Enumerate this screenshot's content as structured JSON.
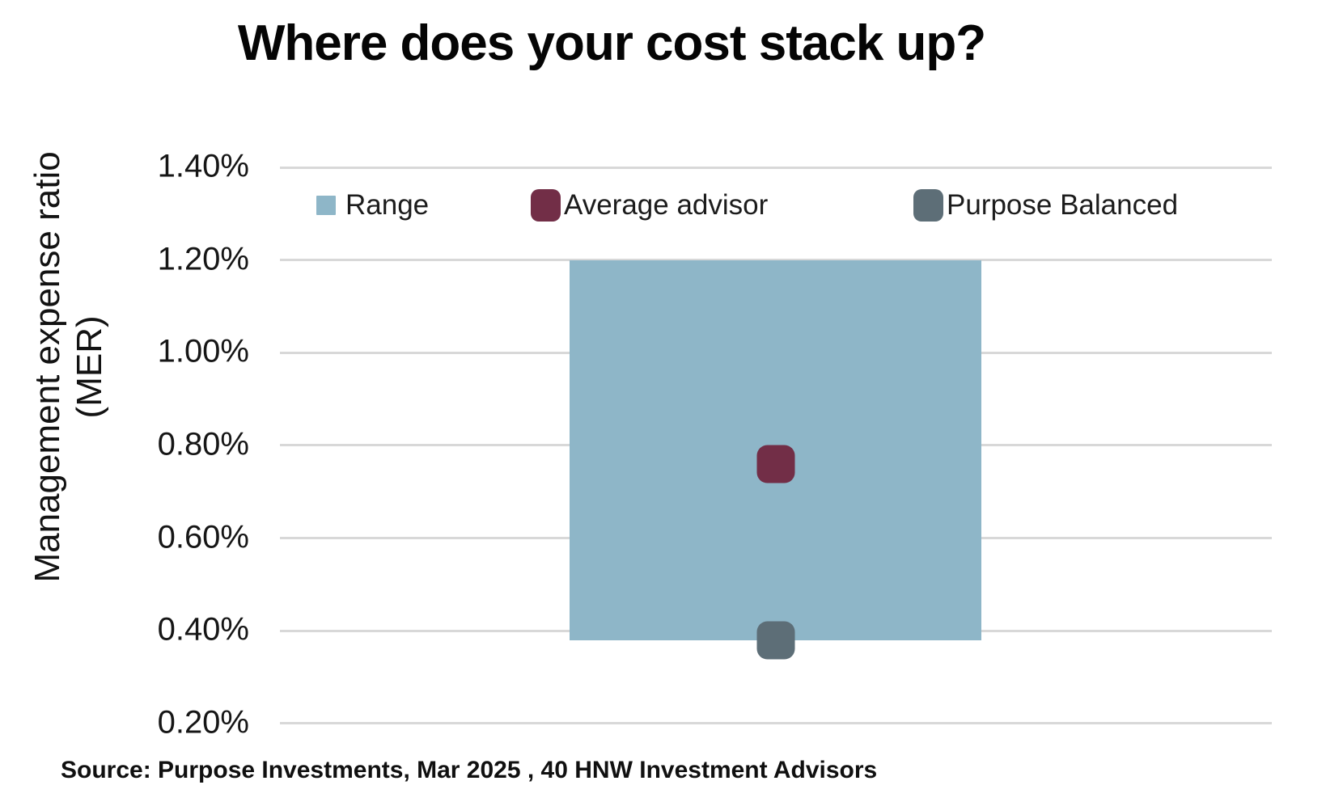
{
  "chart_data": {
    "type": "bar",
    "title": "Where does your cost stack up?",
    "ylabel": "Management expense ratio (MER)",
    "ylabel_line1": "Management expense ratio",
    "ylabel_line2": "(MER)",
    "y_axis": {
      "unit": "%",
      "tick_labels": [
        "1.40%",
        "1.20%",
        "1.00%",
        "0.80%",
        "0.60%",
        "0.40%",
        "0.20%"
      ],
      "tick_values": [
        1.4,
        1.2,
        1.0,
        0.8,
        0.6,
        0.4,
        0.2
      ],
      "range_shown": [
        0.2,
        1.4
      ],
      "grid": "horizontal"
    },
    "legend_position": "top",
    "series": [
      {
        "name": "Range",
        "type": "range-bar",
        "low": 0.38,
        "high": 1.2,
        "color": "#8EB6C8",
        "swatch": "square"
      },
      {
        "name": "Average advisor",
        "type": "point",
        "value": 0.76,
        "color": "#722E47",
        "swatch": "rounded-square"
      },
      {
        "name": "Purpose Balanced",
        "type": "point",
        "value": 0.38,
        "color": "#5D6E77",
        "swatch": "rounded-square"
      }
    ],
    "source": "Source: Purpose Investments, Mar 2025 , 40 HNW Investment Advisors"
  },
  "colors": {
    "range_bar": "#8EB6C8",
    "average_advisor_marker": "#722E47",
    "purpose_balanced_marker": "#5D6E77",
    "gridline": "#D8D8D8",
    "title_text": "#050505",
    "body_text": "#161616"
  }
}
